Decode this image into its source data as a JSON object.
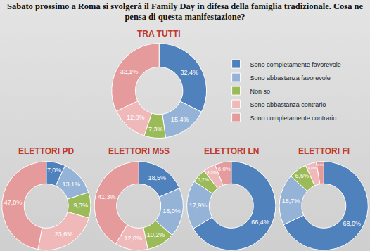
{
  "title": "Sabato prossimo a Roma si svolgerà il Family Day in difesa della famiglia tradizionale. Cosa ne pensa di questa manifestazione?",
  "chart_data": [
    {
      "type": "pie",
      "title": "TRA TUTTI",
      "legend": "right",
      "data_labels": true,
      "categories": [
        "Sono completamente favorevole",
        "Sono abbastanza favorevole",
        "Non so",
        "Sono abbastanza contrario",
        "Sono completamente contrario"
      ],
      "values": [
        32.4,
        15.4,
        7.3,
        12.8,
        32.1
      ],
      "value_labels": [
        "32,4%",
        "15,4%",
        "7,3%",
        "12,8%",
        "32,1%"
      ],
      "colors": [
        "#4f81bd",
        "#95b3d7",
        "#9bbb59",
        "#f0b9b9",
        "#e59b9b"
      ]
    },
    {
      "type": "pie",
      "title": "ELETTORI PD",
      "data_labels": true,
      "categories": [
        "Sono completamente favorevole",
        "Sono abbastanza favorevole",
        "Non so",
        "Sono abbastanza contrario",
        "Sono completamente contrario"
      ],
      "values": [
        7.0,
        13.1,
        9.3,
        23.6,
        47.0
      ],
      "value_labels": [
        "7,0%",
        "13,1%",
        "9,3%",
        "23,6%",
        "47,0%"
      ],
      "colors": [
        "#4f81bd",
        "#95b3d7",
        "#9bbb59",
        "#f0b9b9",
        "#e59b9b"
      ]
    },
    {
      "type": "pie",
      "title": "ELETTORI M5S",
      "data_labels": true,
      "categories": [
        "Sono completamente favorevole",
        "Sono abbastanza favorevole",
        "Non so",
        "Sono abbastanza contrario",
        "Sono completamente contrario"
      ],
      "values": [
        18.5,
        18.0,
        10.2,
        12.0,
        41.3
      ],
      "value_labels": [
        "18,5%",
        "18,0%",
        "10,2%",
        "12,0%",
        "41,3%"
      ],
      "colors": [
        "#4f81bd",
        "#95b3d7",
        "#9bbb59",
        "#f0b9b9",
        "#e59b9b"
      ]
    },
    {
      "type": "pie",
      "title": "ELETTORI LN",
      "data_labels": true,
      "categories": [
        "Sono completamente favorevole",
        "Sono abbastanza favorevole",
        "Non so",
        "Sono abbastanza contrario",
        "Sono completamente contrario"
      ],
      "values": [
        66.4,
        17.9,
        5.2,
        4.5,
        6.0
      ],
      "value_labels": [
        "66,4%",
        "17,9%",
        "5,2%",
        "4,5%",
        "6,0%"
      ],
      "colors": [
        "#4f81bd",
        "#95b3d7",
        "#9bbb59",
        "#f0b9b9",
        "#e59b9b"
      ]
    },
    {
      "type": "pie",
      "title": "ELETTORI FI",
      "data_labels": true,
      "categories": [
        "Sono completamente favorevole",
        "Sono abbastanza favorevole",
        "Non so",
        "Sono abbastanza contrario",
        "Sono completamente contrario"
      ],
      "values": [
        68.0,
        18.7,
        6.6,
        4.0,
        2.7
      ],
      "value_labels": [
        "68,0%",
        "18,7%",
        "6,6%",
        "4,0%",
        "2,7%"
      ],
      "colors": [
        "#4f81bd",
        "#95b3d7",
        "#9bbb59",
        "#f0b9b9",
        "#e59b9b"
      ]
    }
  ]
}
